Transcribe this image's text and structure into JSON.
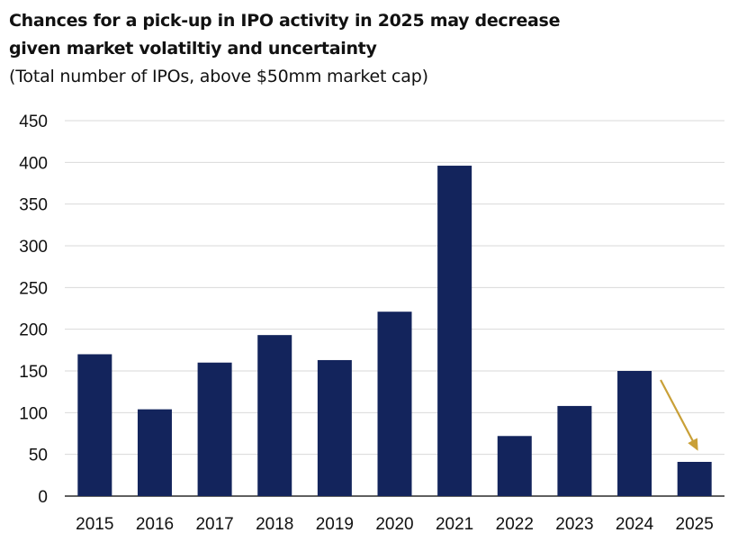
{
  "title_lines": [
    "Chances for a pick-up in IPO activity in 2025 may decrease",
    "given market volatiltiy and uncertainty"
  ],
  "subtitle": "(Total number of IPOs, above $50mm market cap)",
  "colors": {
    "bar": "#13245c",
    "arrow": "#c9a037",
    "grid": "#d9d9d9",
    "axis": "#000000"
  },
  "chart_data": {
    "type": "bar",
    "title": "Chances for a pick-up in IPO activity in 2025 may decrease given market volatiltiy and uncertainty",
    "subtitle": "(Total number of IPOs, above $50mm market cap)",
    "xlabel": "",
    "ylabel": "",
    "categories": [
      "2015",
      "2016",
      "2017",
      "2018",
      "2019",
      "2020",
      "2021",
      "2022",
      "2023",
      "2024",
      "2025"
    ],
    "values": [
      170,
      104,
      160,
      193,
      163,
      221,
      396,
      72,
      108,
      150,
      41
    ],
    "ylim": [
      0,
      450
    ],
    "yticks": [
      0,
      50,
      100,
      150,
      200,
      250,
      300,
      350,
      400,
      450
    ],
    "grid": true,
    "legend": "none",
    "annotations": [
      {
        "type": "arrow",
        "description": "downward arrow from 2024 bar toward 2025 bar",
        "from_category": "2024",
        "to_category": "2025"
      }
    ]
  }
}
